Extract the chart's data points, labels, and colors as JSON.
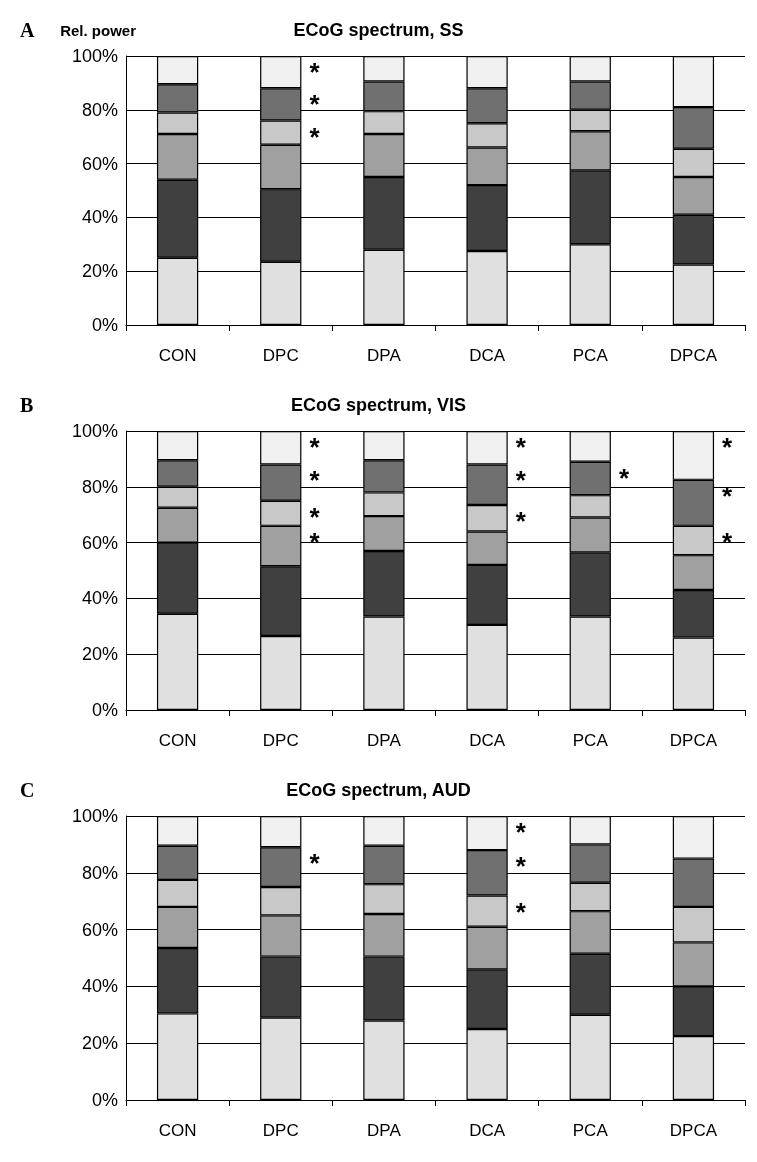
{
  "chart_data": [
    {
      "type": "bar",
      "stacked": true,
      "title": "ECoG spectrum, SS",
      "ylabel": "Rel. power",
      "annotations": [
        "A",
        {
          "text": "*",
          "x": "DPC",
          "y": 100
        },
        {
          "text": "*",
          "x": "DPC",
          "y": 88
        },
        {
          "text": "*",
          "x": "DPC",
          "y": 76
        }
      ],
      "categories": [
        "CON",
        "DPC",
        "DPA",
        "DCA",
        "PCA",
        "DPCA"
      ],
      "ylim": [
        0,
        100
      ],
      "yticks": [
        {
          "value": 0,
          "label": "0%"
        },
        {
          "value": 20,
          "label": "20%"
        },
        {
          "value": 40,
          "label": "40%"
        },
        {
          "value": 60,
          "label": "60%"
        },
        {
          "value": 80,
          "label": "80%"
        },
        {
          "value": 100,
          "label": "100%"
        }
      ],
      "grid": "y",
      "series": [
        {
          "color": "#e0e0e0",
          "values": [
            25,
            23.5,
            28,
            27.5,
            30,
            22.5
          ]
        },
        {
          "color": "#404040",
          "values": [
            29,
            27,
            27,
            24.5,
            27.5,
            18.5
          ]
        },
        {
          "color": "#a0a0a0",
          "values": [
            17,
            16.5,
            16,
            14,
            14.5,
            14
          ]
        },
        {
          "color": "#c8c8c8",
          "values": [
            8,
            9,
            8.5,
            9,
            8,
            10.5
          ]
        },
        {
          "color": "#707070",
          "values": [
            10.5,
            12,
            11,
            13,
            10.5,
            15.5
          ]
        },
        {
          "color": "#f0f0f0",
          "values": [
            10.5,
            12,
            9.5,
            12,
            9.5,
            19
          ]
        }
      ]
    },
    {
      "type": "bar",
      "stacked": true,
      "title": "ECoG spectrum, VIS",
      "annotations": [
        "B",
        {
          "text": "*",
          "x": "DPC",
          "y": 100
        },
        {
          "text": "*",
          "x": "DPC",
          "y": 88
        },
        {
          "text": "*",
          "x": "DPC",
          "y": 75
        },
        {
          "text": "*",
          "x": "DPC",
          "y": 66
        },
        {
          "text": "*",
          "x": "DCA",
          "y": 100
        },
        {
          "text": "*",
          "x": "DCA",
          "y": 88
        },
        {
          "text": "*",
          "x": "DCA",
          "y": 73.5
        },
        {
          "text": "*",
          "x": "PCA",
          "y": 89
        },
        {
          "text": "*",
          "x": "DPCA",
          "y": 100
        },
        {
          "text": "*",
          "x": "DPCA",
          "y": 82.5
        },
        {
          "text": "*",
          "x": "DPCA",
          "y": 66
        }
      ],
      "categories": [
        "CON",
        "DPC",
        "DPA",
        "DCA",
        "PCA",
        "DPCA"
      ],
      "ylim": [
        0,
        100
      ],
      "yticks": [
        {
          "value": 0,
          "label": "0%"
        },
        {
          "value": 20,
          "label": "20%"
        },
        {
          "value": 40,
          "label": "40%"
        },
        {
          "value": 60,
          "label": "60%"
        },
        {
          "value": 80,
          "label": "80%"
        },
        {
          "value": 100,
          "label": "100%"
        }
      ],
      "grid": "y",
      "series": [
        {
          "color": "#e0e0e0",
          "values": [
            34.5,
            26.5,
            33.5,
            30.5,
            33.5,
            26
          ]
        },
        {
          "color": "#404040",
          "values": [
            25.5,
            25,
            23.5,
            21.5,
            23,
            17
          ]
        },
        {
          "color": "#a0a0a0",
          "values": [
            12.5,
            14.5,
            12.5,
            12,
            12.5,
            12.5
          ]
        },
        {
          "color": "#c8c8c8",
          "values": [
            7.5,
            9,
            8.5,
            9.5,
            8,
            10.5
          ]
        },
        {
          "color": "#707070",
          "values": [
            9.5,
            13,
            11.5,
            14.5,
            12,
            16.5
          ]
        },
        {
          "color": "#f0f0f0",
          "values": [
            10.5,
            12,
            10.5,
            12,
            11,
            17.5
          ]
        }
      ]
    },
    {
      "type": "bar",
      "stacked": true,
      "title": "ECoG spectrum, AUD",
      "annotations": [
        "C",
        {
          "text": "*",
          "x": "DPC",
          "y": 89
        },
        {
          "text": "*",
          "x": "DCA",
          "y": 100
        },
        {
          "text": "*",
          "x": "DCA",
          "y": 88
        },
        {
          "text": "*",
          "x": "DCA",
          "y": 72
        }
      ],
      "categories": [
        "CON",
        "DPC",
        "DPA",
        "DCA",
        "PCA",
        "DPCA"
      ],
      "ylim": [
        0,
        100
      ],
      "yticks": [
        {
          "value": 0,
          "label": "0%"
        },
        {
          "value": 20,
          "label": "20%"
        },
        {
          "value": 40,
          "label": "40%"
        },
        {
          "value": 60,
          "label": "60%"
        },
        {
          "value": 80,
          "label": "80%"
        },
        {
          "value": 100,
          "label": "100%"
        }
      ],
      "grid": "y",
      "series": [
        {
          "color": "#e0e0e0",
          "values": [
            30.5,
            29,
            28,
            25,
            30,
            22.5
          ]
        },
        {
          "color": "#404040",
          "values": [
            23,
            21.5,
            22.5,
            21,
            21.5,
            17.5
          ]
        },
        {
          "color": "#a0a0a0",
          "values": [
            14.5,
            14.5,
            15,
            15,
            15,
            15.5
          ]
        },
        {
          "color": "#c8c8c8",
          "values": [
            9.5,
            10,
            10.5,
            11,
            10,
            12.5
          ]
        },
        {
          "color": "#707070",
          "values": [
            12,
            14,
            13.5,
            16,
            13.5,
            17
          ]
        },
        {
          "color": "#f0f0f0",
          "values": [
            10.5,
            11,
            10.5,
            12,
            10,
            15
          ]
        }
      ]
    }
  ]
}
